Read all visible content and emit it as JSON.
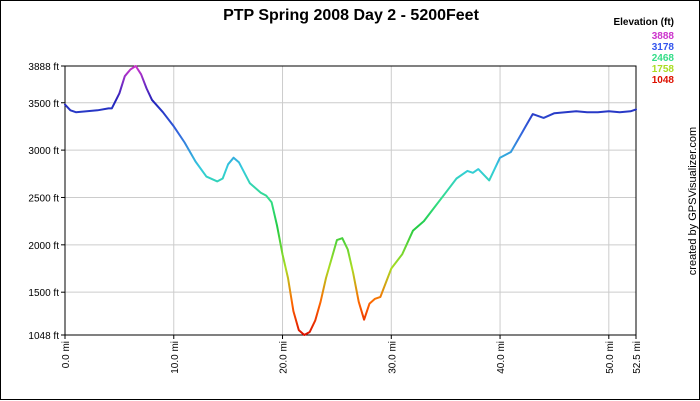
{
  "chart_data": {
    "type": "line",
    "title": "PTP Spring 2008 Day 2 - 5200Feet",
    "xlabel": "",
    "ylabel": "",
    "x_unit": "mi",
    "y_unit": "ft",
    "xlim": [
      0,
      52.5
    ],
    "ylim": [
      1048,
      3888
    ],
    "x_ticks": [
      "0.0 mi",
      "10.0 mi",
      "20.0 mi",
      "30.0 mi",
      "40.0 mi",
      "50.0 mi",
      "52.5 mi"
    ],
    "y_ticks": [
      "1048 ft",
      "1500 ft",
      "2000 ft",
      "2500 ft",
      "3000 ft",
      "3500 ft",
      "3888 ft"
    ],
    "grid": true,
    "legend": {
      "title": "Elevation (ft)",
      "placement": "top-right",
      "entries": [
        {
          "label": "3888",
          "color": "#cc33cc"
        },
        {
          "label": "3178",
          "color": "#3355ee"
        },
        {
          "label": "2468",
          "color": "#33dd88"
        },
        {
          "label": "1758",
          "color": "#aadd22"
        },
        {
          "label": "1048",
          "color": "#dd1100"
        }
      ]
    },
    "credit": "created by GPSVisualizer.com",
    "series": [
      {
        "color_by": "elevation",
        "x": [
          0,
          0.5,
          1,
          2,
          3,
          4,
          4.3,
          5,
          5.5,
          6,
          6.5,
          7,
          7.5,
          8,
          9,
          10,
          11,
          12,
          13,
          14,
          14.5,
          15,
          15.5,
          16,
          17,
          18,
          18.5,
          19,
          19.5,
          20,
          20.5,
          21,
          21.5,
          22,
          22.5,
          23,
          23.5,
          24,
          24.5,
          25,
          25.5,
          26,
          26.5,
          27,
          27.5,
          28,
          28.5,
          29,
          30,
          31,
          32,
          33,
          34,
          35,
          36,
          37,
          37.5,
          38,
          39,
          40,
          41,
          42,
          42.5,
          43,
          44,
          45,
          46,
          47,
          48,
          49,
          50,
          51,
          52,
          52.5
        ],
        "y": [
          3480,
          3420,
          3400,
          3410,
          3420,
          3440,
          3440,
          3600,
          3780,
          3850,
          3888,
          3800,
          3650,
          3530,
          3400,
          3250,
          3080,
          2880,
          2720,
          2670,
          2700,
          2850,
          2920,
          2870,
          2650,
          2550,
          2520,
          2450,
          2200,
          1900,
          1650,
          1300,
          1100,
          1048,
          1080,
          1200,
          1400,
          1650,
          1850,
          2050,
          2070,
          1950,
          1700,
          1400,
          1210,
          1380,
          1430,
          1450,
          1750,
          1900,
          2150,
          2250,
          2400,
          2550,
          2700,
          2780,
          2760,
          2800,
          2680,
          2920,
          2980,
          3180,
          3280,
          3380,
          3340,
          3390,
          3400,
          3410,
          3400,
          3400,
          3410,
          3400,
          3410,
          3430
        ]
      }
    ]
  }
}
